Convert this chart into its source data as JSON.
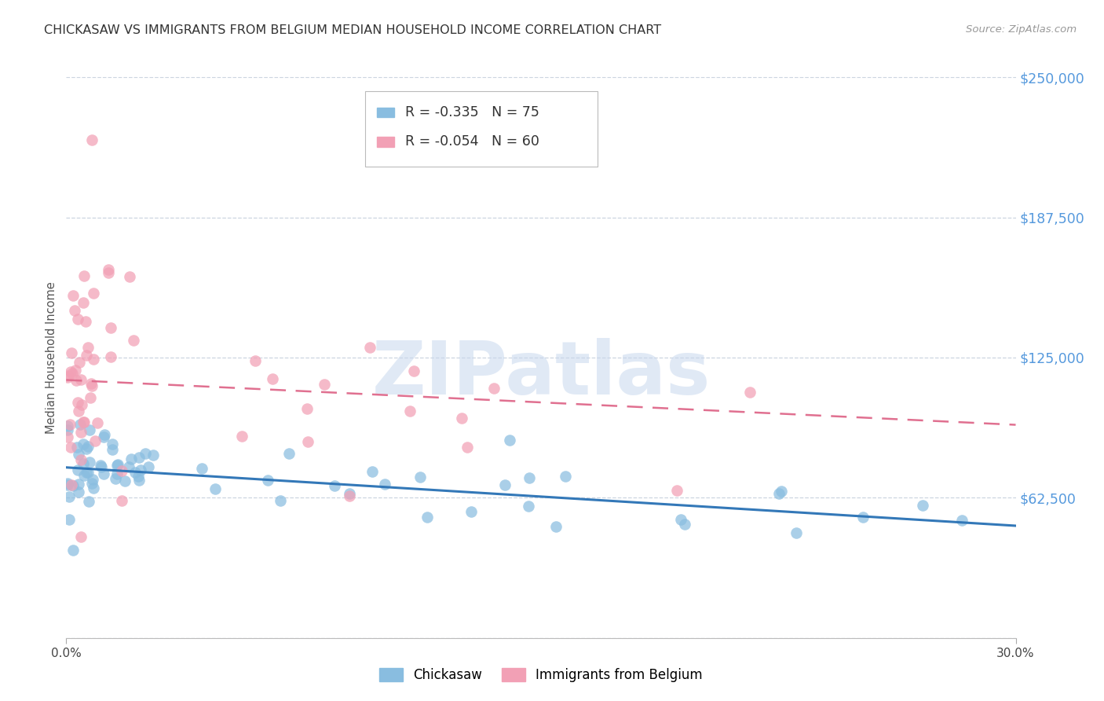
{
  "title": "CHICKASAW VS IMMIGRANTS FROM BELGIUM MEDIAN HOUSEHOLD INCOME CORRELATION CHART",
  "source": "Source: ZipAtlas.com",
  "xmin": 0.0,
  "xmax": 0.3,
  "ymin": 0,
  "ymax": 250000,
  "ylabel_ticks": [
    0,
    62500,
    125000,
    187500,
    250000
  ],
  "ylabel_labels": [
    "",
    "$62,500",
    "$125,000",
    "$187,500",
    "$250,000"
  ],
  "watermark_text": "ZIPatlas",
  "chickasaw_color": "#89bde0",
  "belgium_color": "#f2a0b5",
  "trendline_chickasaw_color": "#3378b8",
  "trendline_belgium_color": "#e07090",
  "background_color": "#ffffff",
  "grid_color": "#ccd5e0",
  "ytick_color": "#5599dd",
  "legend_r1": "R = -0.335",
  "legend_n1": "N = 75",
  "legend_r2": "R = -0.054",
  "legend_n2": "N = 60",
  "bottom_label1": "Chickasaw",
  "bottom_label2": "Immigrants from Belgium"
}
